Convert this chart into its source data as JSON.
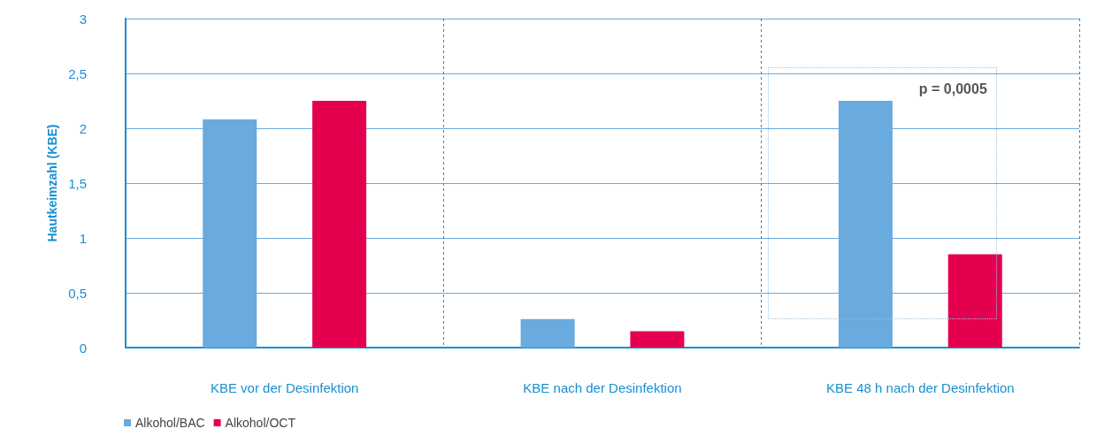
{
  "chart_data": {
    "type": "bar",
    "ylabel": "Hautkeimzahl (KBE)",
    "categories": [
      "KBE vor der Desinfektion",
      "KBE nach der Desinfektion",
      "KBE 48 h nach der Desinfektion"
    ],
    "series": [
      {
        "name": "Alkohol/BAC",
        "color": "#69aadf",
        "values": [
          2.08,
          0.26,
          2.25
        ]
      },
      {
        "name": "Alkohol/OCT",
        "color": "#e4004f",
        "values": [
          2.25,
          0.15,
          0.85
        ]
      }
    ],
    "ylim": [
      0,
      3
    ],
    "yticks": [
      0,
      {
        "value": 0.5,
        "label": "0,5"
      },
      1,
      {
        "value": 1.5,
        "label": "1,5"
      },
      2,
      {
        "value": 2.5,
        "label": "2,5"
      },
      3
    ],
    "grid": "y",
    "legend": "bottom left",
    "annotations": [
      "p = 0,0005"
    ]
  }
}
